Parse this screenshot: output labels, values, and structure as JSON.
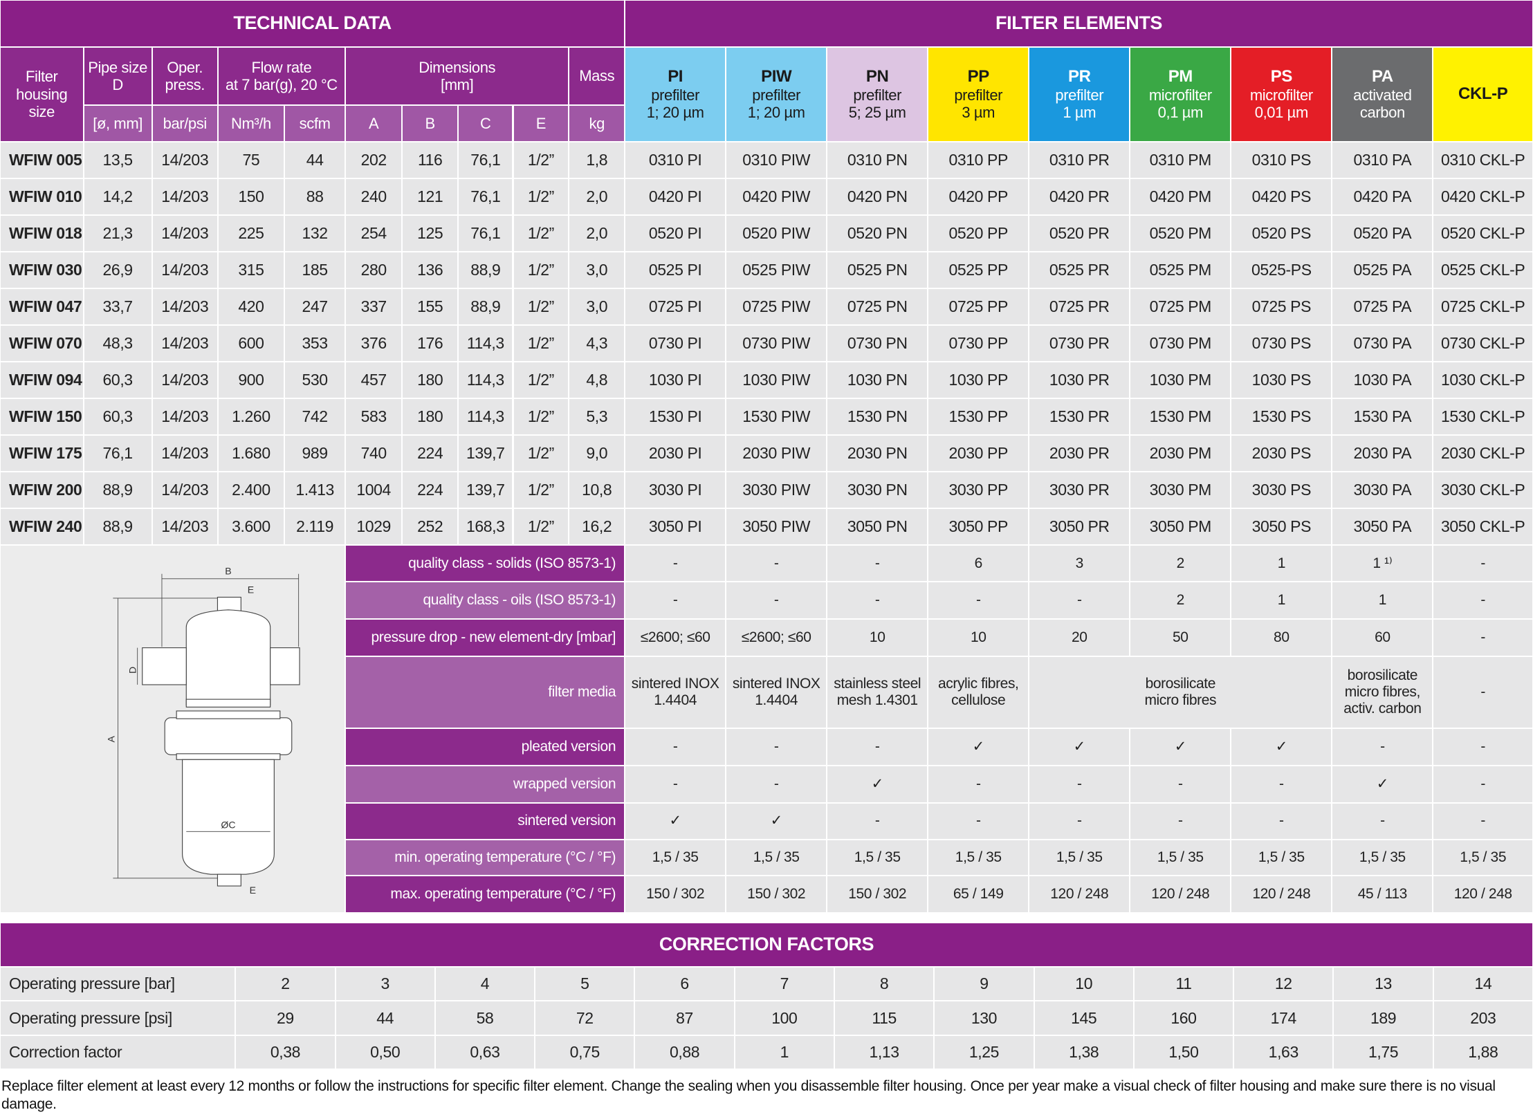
{
  "header": {
    "technical_title": "TECHNICAL DATA",
    "elements_title": "FILTER ELEMENTS"
  },
  "tech_headers": [
    "Filter\nhousing\nsize",
    "Pipe size\nD",
    "Oper.\npress.",
    "Flow rate\nat 7 bar(g), 20 °C",
    "Dimensions\n[mm]",
    "Mass"
  ],
  "tech_units": [
    "[ø, mm]",
    "bar/psi",
    "Nm³/h",
    "scfm",
    "A",
    "B",
    "C",
    "E",
    "kg"
  ],
  "elements": [
    {
      "code": "PI",
      "desc": "prefilter\n1; 20 µm",
      "color": "#7ccdf0",
      "text_color": "#1a1a1a"
    },
    {
      "code": "PIW",
      "desc": "prefilter\n1; 20 µm",
      "color": "#7ccdf0",
      "text_color": "#1a1a1a"
    },
    {
      "code": "PN",
      "desc": "prefilter\n5; 25 µm",
      "color": "#ddc5e2",
      "text_color": "#1a1a1a"
    },
    {
      "code": "PP",
      "desc": "prefilter\n3 µm",
      "color": "#ffe500",
      "text_color": "#1a1a1a"
    },
    {
      "code": "PR",
      "desc": "prefilter\n1 µm",
      "color": "#1a98de",
      "text_color": "#ffffff"
    },
    {
      "code": "PM",
      "desc": "microfilter\n0,1 µm",
      "color": "#3aa845",
      "text_color": "#ffffff"
    },
    {
      "code": "PS",
      "desc": "microfilter\n0,01 µm",
      "color": "#e41e26",
      "text_color": "#ffffff"
    },
    {
      "code": "PA",
      "desc": "activated\ncarbon",
      "color": "#6b6c6e",
      "text_color": "#ffffff"
    },
    {
      "code": "CKL-P",
      "color": "#fff200",
      "text_color": "#1a1a1a"
    }
  ],
  "rows": [
    {
      "tech": [
        "WFIW 005",
        "13,5",
        "14/203",
        "75",
        "44",
        "202",
        "116",
        "76,1",
        "1/2”",
        "1,8"
      ],
      "elements": [
        "0310 PI",
        "0310 PIW",
        "0310 PN",
        "0310 PP",
        "0310 PR",
        "0310 PM",
        "0310 PS",
        "0310 PA",
        "0310 CKL-P"
      ]
    },
    {
      "tech": [
        "WFIW 010",
        "14,2",
        "14/203",
        "150",
        "88",
        "240",
        "121",
        "76,1",
        "1/2”",
        "2,0"
      ],
      "elements": [
        "0420 PI",
        "0420 PIW",
        "0420 PN",
        "0420 PP",
        "0420 PR",
        "0420 PM",
        "0420 PS",
        "0420 PA",
        "0420 CKL-P"
      ]
    },
    {
      "tech": [
        "WFIW 018",
        "21,3",
        "14/203",
        "225",
        "132",
        "254",
        "125",
        "76,1",
        "1/2”",
        "2,0"
      ],
      "elements": [
        "0520 PI",
        "0520 PIW",
        "0520 PN",
        "0520 PP",
        "0520 PR",
        "0520 PM",
        "0520 PS",
        "0520 PA",
        "0520 CKL-P"
      ]
    },
    {
      "tech": [
        "WFIW 030",
        "26,9",
        "14/203",
        "315",
        "185",
        "280",
        "136",
        "88,9",
        "1/2”",
        "3,0"
      ],
      "elements": [
        "0525 PI",
        "0525 PIW",
        "0525 PN",
        "0525 PP",
        "0525 PR",
        "0525 PM",
        "0525-PS",
        "0525 PA",
        "0525 CKL-P"
      ]
    },
    {
      "tech": [
        "WFIW 047",
        "33,7",
        "14/203",
        "420",
        "247",
        "337",
        "155",
        "88,9",
        "1/2”",
        "3,0"
      ],
      "elements": [
        "0725 PI",
        "0725 PIW",
        "0725 PN",
        "0725 PP",
        "0725 PR",
        "0725 PM",
        "0725 PS",
        "0725 PA",
        "0725 CKL-P"
      ]
    },
    {
      "tech": [
        "WFIW 070",
        "48,3",
        "14/203",
        "600",
        "353",
        "376",
        "176",
        "114,3",
        "1/2”",
        "4,3"
      ],
      "elements": [
        "0730 PI",
        "0730 PIW",
        "0730 PN",
        "0730 PP",
        "0730 PR",
        "0730 PM",
        "0730 PS",
        "0730 PA",
        "0730 CKL-P"
      ]
    },
    {
      "tech": [
        "WFIW 094",
        "60,3",
        "14/203",
        "900",
        "530",
        "457",
        "180",
        "114,3",
        "1/2”",
        "4,8"
      ],
      "elements": [
        "1030 PI",
        "1030 PIW",
        "1030 PN",
        "1030 PP",
        "1030 PR",
        "1030 PM",
        "1030 PS",
        "1030 PA",
        "1030 CKL-P"
      ]
    },
    {
      "tech": [
        "WFIW 150",
        "60,3",
        "14/203",
        "1.260",
        "742",
        "583",
        "180",
        "114,3",
        "1/2”",
        "5,3"
      ],
      "elements": [
        "1530 PI",
        "1530 PIW",
        "1530 PN",
        "1530 PP",
        "1530 PR",
        "1530 PM",
        "1530 PS",
        "1530 PA",
        "1530 CKL-P"
      ]
    },
    {
      "tech": [
        "WFIW 175",
        "76,1",
        "14/203",
        "1.680",
        "989",
        "740",
        "224",
        "139,7",
        "1/2”",
        "9,0"
      ],
      "elements": [
        "2030 PI",
        "2030 PIW",
        "2030 PN",
        "2030 PP",
        "2030 PR",
        "2030 PM",
        "2030 PS",
        "2030 PA",
        "2030 CKL-P"
      ]
    },
    {
      "tech": [
        "WFIW 200",
        "88,9",
        "14/203",
        "2.400",
        "1.413",
        "1004",
        "224",
        "139,7",
        "1/2”",
        "10,8"
      ],
      "elements": [
        "3030 PI",
        "3030 PIW",
        "3030 PN",
        "3030 PP",
        "3030 PR",
        "3030 PM",
        "3030 PS",
        "3030 PA",
        "3030 CKL-P"
      ]
    },
    {
      "tech": [
        "WFIW 240",
        "88,9",
        "14/203",
        "3.600",
        "2.119",
        "1029",
        "252",
        "168,3",
        "1/2”",
        "16,2"
      ],
      "elements": [
        "3050 PI",
        "3050 PIW",
        "3050 PN",
        "3050 PP",
        "3050 PR",
        "3050 PM",
        "3050 PS",
        "3050 PA",
        "3050 CKL-P"
      ]
    }
  ],
  "properties": [
    {
      "label": "quality class - solids (ISO 8573-1)",
      "values": [
        "-",
        "-",
        "-",
        "6",
        "3",
        "2",
        "1",
        "1 ¹⁾",
        "-"
      ]
    },
    {
      "label": "quality class - oils (ISO 8573-1)",
      "values": [
        "-",
        "-",
        "-",
        "-",
        "-",
        "2",
        "1",
        "1",
        "-"
      ]
    },
    {
      "label": "pressure drop - new element-dry [mbar]",
      "values": [
        "≤2600; ≤60",
        "≤2600; ≤60",
        "10",
        "10",
        "20",
        "50",
        "80",
        "60",
        "-"
      ]
    },
    {
      "label": "filter media",
      "values": [
        "sintered INOX\n1.4404",
        "sintered INOX\n1.4404",
        "stainless steel\nmesh 1.4301",
        "acrylic fibres,\ncellulose",
        "borosilicate\nmicro fibres",
        null,
        null,
        "borosilicate\nmicro fibres,\nactiv. carbon",
        "-"
      ]
    },
    {
      "label": "pleated version",
      "values": [
        "-",
        "-",
        "-",
        "✓",
        "✓",
        "✓",
        "✓",
        "-",
        "-"
      ]
    },
    {
      "label": "wrapped version",
      "values": [
        "-",
        "-",
        "✓",
        "-",
        "-",
        "-",
        "-",
        "✓",
        "-"
      ]
    },
    {
      "label": "sintered version",
      "values": [
        "✓",
        "✓",
        "-",
        "-",
        "-",
        "-",
        "-",
        "-",
        "-"
      ]
    },
    {
      "label": "min. operating temperature  (°C / °F)",
      "values": [
        "1,5 / 35",
        "1,5 / 35",
        "1,5 / 35",
        "1,5 / 35",
        "1,5 / 35",
        "1,5 / 35",
        "1,5 / 35",
        "1,5 / 35",
        "1,5 / 35"
      ]
    },
    {
      "label": "max. operating temperature  (°C / °F)",
      "values": [
        "150 / 302",
        "150 / 302",
        "150 / 302",
        "65 / 149",
        "120 / 248",
        "120 / 248",
        "120 / 248",
        "45 / 113",
        "120 / 248"
      ]
    }
  ],
  "diagram": {
    "width": "B",
    "top_port": "E",
    "pipe": "D",
    "height": "A",
    "diameter": "ØC",
    "bottom_port": "E"
  },
  "correction": {
    "title": "CORRECTION FACTORS",
    "rows": [
      {
        "label": "Operating pressure [bar]",
        "values": [
          "2",
          "3",
          "4",
          "5",
          "6",
          "7",
          "8",
          "9",
          "10",
          "11",
          "12",
          "13",
          "14"
        ]
      },
      {
        "label": "Operating pressure [psi]",
        "values": [
          "29",
          "44",
          "58",
          "72",
          "87",
          "100",
          "115",
          "130",
          "145",
          "160",
          "174",
          "189",
          "203"
        ]
      },
      {
        "label": "Correction factor",
        "values": [
          "0,38",
          "0,50",
          "0,63",
          "0,75",
          "0,88",
          "1",
          "1,13",
          "1,25",
          "1,38",
          "1,50",
          "1,63",
          "1,75",
          "1,88"
        ]
      }
    ]
  },
  "footnote": "Replace filter element at least every 12 months or follow the instructions for specific filter element. Change the sealing when you disassemble filter housing. Once per year make a visual check of filter housing and make sure there is no visual damage."
}
